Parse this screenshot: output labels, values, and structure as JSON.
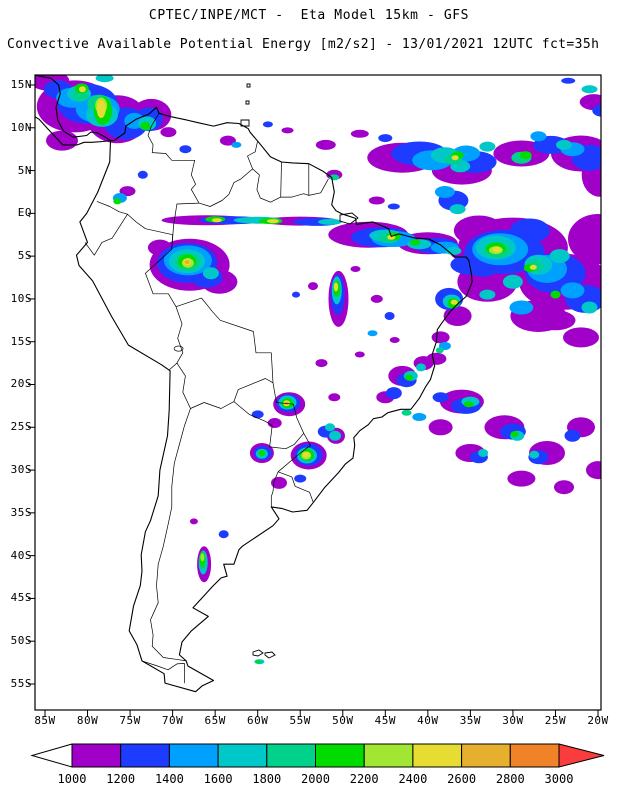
{
  "header": {
    "line1": "CPTEC/INPE/MCT -  Eta Model 15km - GFS",
    "line2": "Convective Available Potential Energy [m2/s2] - 13/01/2021 12UTC fct=35h"
  },
  "chart_data": {
    "type": "heatmap",
    "title": "Convective Available Potential Energy [m2/s2]",
    "model": "Eta Model 15km - GFS",
    "source": "CPTEC/INPE/MCT",
    "valid": "13/01/2021 12UTC fct=35h",
    "y_ticks": [
      "15N",
      "10N",
      "5N",
      "EQ",
      "5S",
      "10S",
      "15S",
      "20S",
      "25S",
      "30S",
      "35S",
      "40S",
      "45S",
      "50S",
      "55S"
    ],
    "x_ticks": [
      "85W",
      "80W",
      "75W",
      "70W",
      "65W",
      "60W",
      "55W",
      "50W",
      "45W",
      "40W",
      "35W",
      "30W",
      "25W",
      "20W"
    ],
    "colorbar": {
      "levels": [
        1000,
        1200,
        1400,
        1600,
        1800,
        2000,
        2200,
        2400,
        2600,
        2800,
        3000
      ],
      "cell_colors": [
        "#A000C8",
        "#1E3CFF",
        "#00A0FF",
        "#00C8C8",
        "#00D28C",
        "#00DC00",
        "#A0E632",
        "#E6DC32",
        "#E6AF2D",
        "#F08228"
      ],
      "underflow_color": "#FFFFFF",
      "overflow_color": "#FA3C3C"
    },
    "cape_cells": [
      [
        -81.5,
        12.5,
        38,
        26,
        1100
      ],
      [
        -76.5,
        11,
        30,
        24,
        1100
      ],
      [
        -72.5,
        11.5,
        20,
        16,
        1100
      ],
      [
        -83,
        8.5,
        16,
        10,
        1100
      ],
      [
        -84.5,
        15.5,
        20,
        10,
        1100
      ],
      [
        -80,
        12.8,
        30,
        20,
        1300
      ],
      [
        -75.5,
        10.5,
        22,
        16,
        1300
      ],
      [
        -72.8,
        11,
        14,
        12,
        1300
      ],
      [
        -83.5,
        14.5,
        14,
        9,
        1300
      ],
      [
        -78.8,
        12.2,
        22,
        14,
        1500
      ],
      [
        -81.8,
        13.5,
        16,
        10,
        1500
      ],
      [
        -74.5,
        10.8,
        10,
        8,
        1500
      ],
      [
        -78.3,
        11.5,
        16,
        12,
        1700
      ],
      [
        -81,
        14,
        12,
        8,
        1700
      ],
      [
        -73,
        10.5,
        9,
        7,
        1700
      ],
      [
        -78,
        15.8,
        9,
        4,
        1700
      ],
      [
        -78.6,
        12.8,
        12,
        9,
        1900
      ],
      [
        -80.8,
        13.8,
        8,
        6,
        1900
      ],
      [
        -78.2,
        12,
        9,
        14,
        2100
      ],
      [
        -80.7,
        14.6,
        7,
        5,
        2100
      ],
      [
        -73.2,
        10.2,
        5,
        4,
        2100
      ],
      [
        -78.4,
        12.6,
        6,
        8,
        2300
      ],
      [
        -78.4,
        12.2,
        4.5,
        9,
        2500
      ],
      [
        -80.6,
        14.5,
        3.5,
        3,
        2500
      ],
      [
        -70.5,
        9.5,
        8,
        5,
        1100
      ],
      [
        -68.5,
        7.5,
        6,
        4,
        1300
      ],
      [
        -76.2,
        1.8,
        7,
        5,
        1500
      ],
      [
        -76.5,
        1.4,
        4,
        3,
        2100
      ],
      [
        -75.3,
        2.6,
        8,
        5,
        1100
      ],
      [
        -73.5,
        4.5,
        5,
        4,
        1300
      ],
      [
        -63.5,
        8.5,
        8,
        5,
        1100
      ],
      [
        -62.5,
        8,
        5,
        3,
        1500
      ],
      [
        -48,
        9.3,
        9,
        4,
        1100
      ],
      [
        -52,
        8,
        10,
        5,
        1100
      ],
      [
        -56.5,
        9.7,
        6,
        3,
        1100
      ],
      [
        -58.8,
        10.4,
        5,
        3,
        1300
      ],
      [
        -45,
        8.8,
        7,
        4,
        1300
      ],
      [
        -43,
        6.5,
        35,
        15,
        1100
      ],
      [
        -36,
        5,
        30,
        14,
        1100
      ],
      [
        -29,
        7,
        28,
        13,
        1100
      ],
      [
        -22,
        7,
        30,
        18,
        1100
      ],
      [
        -19.8,
        4.5,
        18,
        22,
        1100
      ],
      [
        -41,
        7,
        28,
        12,
        1300
      ],
      [
        -34.5,
        6,
        22,
        11,
        1300
      ],
      [
        -25.5,
        8,
        18,
        9,
        1300
      ],
      [
        -21,
        6.5,
        18,
        13,
        1300
      ],
      [
        -39.5,
        6.2,
        20,
        10,
        1500
      ],
      [
        -35.5,
        7,
        14,
        8,
        1500
      ],
      [
        -23,
        7.5,
        12,
        7,
        1500
      ],
      [
        -27,
        9,
        8,
        5,
        1500
      ],
      [
        -38,
        6.8,
        14,
        8,
        1700
      ],
      [
        -36.2,
        5.5,
        10,
        6,
        1700
      ],
      [
        -33,
        7.8,
        8,
        5,
        1700
      ],
      [
        -24,
        8,
        8,
        5,
        1700
      ],
      [
        -37,
        6.3,
        9,
        5,
        1900
      ],
      [
        -29,
        6.5,
        10,
        6,
        1900
      ],
      [
        -36.5,
        6.8,
        6,
        4,
        2100
      ],
      [
        -28.5,
        6.8,
        6,
        4,
        2100
      ],
      [
        -36.8,
        6.5,
        3.5,
        2.5,
        2500
      ],
      [
        -20.5,
        13,
        14,
        8,
        1100
      ],
      [
        -19.5,
        12,
        10,
        6,
        1300
      ],
      [
        -21,
        14.5,
        8,
        4,
        1700
      ],
      [
        -23.5,
        15.5,
        7,
        3,
        1300
      ],
      [
        -37,
        1.5,
        15,
        10,
        1300
      ],
      [
        -38,
        2.5,
        10,
        6,
        1500
      ],
      [
        -36.5,
        0.5,
        8,
        5,
        1700
      ],
      [
        -46,
        1.5,
        8,
        4,
        1100
      ],
      [
        -44,
        0.8,
        6,
        3,
        1300
      ],
      [
        -51,
        4.5,
        8,
        5,
        1100
      ],
      [
        -51,
        4.2,
        5,
        3,
        1900
      ],
      [
        -47,
        -2.5,
        40,
        13,
        1100
      ],
      [
        -40,
        -3.5,
        30,
        11,
        1100
      ],
      [
        -35.5,
        -4.5,
        16,
        9,
        1100
      ],
      [
        -45.5,
        -2.8,
        30,
        10,
        1300
      ],
      [
        -39,
        -3.8,
        22,
        8,
        1300
      ],
      [
        -44,
        -3,
        22,
        8,
        1500
      ],
      [
        -38,
        -4,
        14,
        6,
        1500
      ],
      [
        -45,
        -2.6,
        16,
        6,
        1700
      ],
      [
        -41,
        -3.6,
        12,
        5,
        1700
      ],
      [
        -37,
        -4.4,
        8,
        4,
        1700
      ],
      [
        -44.6,
        -2.9,
        10,
        5,
        1900
      ],
      [
        -44,
        -2.7,
        7,
        4,
        2100
      ],
      [
        -41.5,
        -3.4,
        5,
        3,
        2100
      ],
      [
        -44.3,
        -2.8,
        4,
        2.5,
        2500
      ],
      [
        -66,
        -0.8,
        45,
        5,
        1100
      ],
      [
        -55,
        -0.9,
        38,
        4.5,
        1100
      ],
      [
        -63,
        -0.8,
        33,
        4,
        1300
      ],
      [
        -53,
        -1,
        24,
        4,
        1300
      ],
      [
        -60,
        -0.8,
        24,
        3.5,
        1700
      ],
      [
        -51.5,
        -1,
        12,
        3,
        1700
      ],
      [
        -58.5,
        -0.9,
        12,
        3,
        2100
      ],
      [
        -65,
        -0.7,
        10,
        3,
        2100
      ],
      [
        -58.2,
        -0.9,
        6,
        2,
        2500
      ],
      [
        -64.8,
        -0.8,
        5,
        2,
        2500
      ],
      [
        -68,
        -6,
        40,
        26,
        1100
      ],
      [
        -64.5,
        -8,
        18,
        12,
        1100
      ],
      [
        -71.5,
        -4,
        12,
        8,
        1100
      ],
      [
        -68.3,
        -5.8,
        30,
        20,
        1300
      ],
      [
        -66,
        -7.5,
        16,
        10,
        1300
      ],
      [
        -68.2,
        -5.5,
        24,
        15,
        1500
      ],
      [
        -68.3,
        -5.6,
        18,
        12,
        1700
      ],
      [
        -65.5,
        -7,
        8,
        6,
        1700
      ],
      [
        -68.2,
        -5.7,
        13,
        9,
        1900
      ],
      [
        -68.3,
        -5.6,
        9,
        7,
        2100
      ],
      [
        -68.2,
        -5.8,
        6,
        5,
        2300
      ],
      [
        -68.3,
        -5.7,
        4,
        3.5,
        2500
      ],
      [
        -68.3,
        -5.7,
        2.5,
        2,
        2700
      ],
      [
        -30,
        -4,
        55,
        30,
        1100
      ],
      [
        -24,
        -8,
        45,
        28,
        1100
      ],
      [
        -33,
        -8,
        30,
        20,
        1100
      ],
      [
        -20,
        -3,
        30,
        25,
        1100
      ],
      [
        -27,
        -12,
        28,
        16,
        1100
      ],
      [
        -34,
        -2,
        25,
        15,
        1100
      ],
      [
        -22,
        -14.5,
        18,
        10,
        1100
      ],
      [
        -25,
        -12.5,
        20,
        10,
        1100
      ],
      [
        -31,
        -4.5,
        40,
        22,
        1300
      ],
      [
        -25,
        -7,
        30,
        20,
        1300
      ],
      [
        -21.5,
        -10,
        20,
        14,
        1300
      ],
      [
        -33.5,
        -6,
        18,
        12,
        1300
      ],
      [
        -28,
        -2,
        20,
        12,
        1300
      ],
      [
        -35,
        -6,
        20,
        10,
        1300
      ],
      [
        -31.5,
        -4.2,
        28,
        16,
        1500
      ],
      [
        -26,
        -6.5,
        20,
        14,
        1500
      ],
      [
        -23,
        -9,
        12,
        8,
        1500
      ],
      [
        -29,
        -11,
        12,
        7,
        1500
      ],
      [
        -32,
        -4,
        20,
        12,
        1700
      ],
      [
        -27,
        -6,
        14,
        10,
        1700
      ],
      [
        -30,
        -8,
        10,
        7,
        1700
      ],
      [
        -24.5,
        -5,
        10,
        7,
        1700
      ],
      [
        -21,
        -11,
        8,
        6,
        1700
      ],
      [
        -33,
        -9.5,
        8,
        5,
        1700
      ],
      [
        -31.8,
        -4.3,
        14,
        8,
        1900
      ],
      [
        -27.5,
        -6.2,
        9,
        6,
        1900
      ],
      [
        -32,
        -4.1,
        10,
        6,
        2100
      ],
      [
        -28,
        -6.4,
        6,
        4,
        2100
      ],
      [
        -25,
        -9.5,
        5,
        4,
        2100
      ],
      [
        -32,
        -4.3,
        7,
        4,
        2300
      ],
      [
        -31.9,
        -4.2,
        4.5,
        3,
        2500
      ],
      [
        -27.6,
        -6.3,
        3.5,
        2.5,
        2500
      ],
      [
        -36.5,
        -12,
        14,
        10,
        1100
      ],
      [
        -37.5,
        -10,
        14,
        11,
        1300
      ],
      [
        -37.2,
        -10.3,
        9,
        7,
        1700
      ],
      [
        -37,
        -10.5,
        6,
        5,
        2100
      ],
      [
        -36.9,
        -10.4,
        3.5,
        2.5,
        2500
      ],
      [
        -38.5,
        -14.5,
        9,
        6,
        1100
      ],
      [
        -38,
        -15.5,
        6,
        4,
        1500
      ],
      [
        -39,
        -17,
        10,
        6,
        1100
      ],
      [
        -38.6,
        -16,
        4,
        3,
        1900
      ],
      [
        -50.5,
        -10,
        10,
        28,
        1100
      ],
      [
        -50.6,
        -9.5,
        7,
        20,
        1300
      ],
      [
        -50.7,
        -9,
        5,
        14,
        1700
      ],
      [
        -50.7,
        -8.8,
        3.5,
        8,
        2100
      ],
      [
        -50.8,
        -8.6,
        2.2,
        4.5,
        2500
      ],
      [
        -53.5,
        -8.5,
        5,
        4,
        1100
      ],
      [
        -55.5,
        -9.5,
        4,
        3,
        1300
      ],
      [
        -48.5,
        -6.5,
        5,
        3,
        1100
      ],
      [
        -46,
        -10,
        6,
        4,
        1100
      ],
      [
        -44.5,
        -12,
        5,
        4,
        1300
      ],
      [
        -46.5,
        -14,
        5,
        3,
        1500
      ],
      [
        -43.9,
        -14.8,
        5,
        3,
        1100
      ],
      [
        -48,
        -16.5,
        5,
        3,
        1100
      ],
      [
        -52.5,
        -17.5,
        6,
        4,
        1100
      ],
      [
        -43,
        -19,
        14,
        10,
        1100
      ],
      [
        -40.5,
        -17.5,
        10,
        7,
        1100
      ],
      [
        -45,
        -21.5,
        9,
        6,
        1100
      ],
      [
        -42.5,
        -19.5,
        10,
        7,
        1300
      ],
      [
        -44,
        -21,
        8,
        6,
        1300
      ],
      [
        -42,
        -19,
        7,
        5,
        1700
      ],
      [
        -40.8,
        -18,
        5,
        4,
        1700
      ],
      [
        -42.2,
        -19.2,
        4,
        3,
        2100
      ],
      [
        -56.3,
        -22.3,
        16,
        12,
        1100
      ],
      [
        -56.4,
        -22.2,
        12,
        9,
        1300
      ],
      [
        -56.5,
        -22.1,
        9,
        7,
        1700
      ],
      [
        -56.5,
        -22.2,
        6,
        5,
        2100
      ],
      [
        -56.6,
        -22.2,
        3.5,
        3,
        2500
      ],
      [
        -56.6,
        -22.2,
        2,
        1.5,
        2700
      ],
      [
        -54,
        -28.3,
        18,
        14,
        1100
      ],
      [
        -54,
        -28.2,
        14,
        11,
        1300
      ],
      [
        -54.2,
        -28.3,
        10,
        8,
        1700
      ],
      [
        -54.2,
        -28.2,
        7,
        6,
        2100
      ],
      [
        -54.3,
        -28.3,
        5,
        4,
        2300
      ],
      [
        -54.3,
        -28.2,
        3.5,
        3,
        2500
      ],
      [
        -59.5,
        -28,
        12,
        10,
        1100
      ],
      [
        -59.4,
        -28,
        9,
        7,
        1300
      ],
      [
        -59.5,
        -28.1,
        6,
        5,
        1700
      ],
      [
        -59.5,
        -28,
        3.5,
        3,
        2100
      ],
      [
        -52,
        -25.5,
        8,
        6,
        1300
      ],
      [
        -51.5,
        -25,
        5,
        4,
        1700
      ],
      [
        -58,
        -24.5,
        7,
        5,
        1100
      ],
      [
        -60,
        -23.5,
        6,
        4,
        1300
      ],
      [
        -51,
        -21.5,
        6,
        4,
        1100
      ],
      [
        -50.8,
        -26,
        9,
        8,
        1100
      ],
      [
        -50.9,
        -26,
        6,
        5,
        1700
      ],
      [
        -57.5,
        -31.5,
        8,
        6,
        1100
      ],
      [
        -55,
        -31,
        6,
        4,
        1300
      ],
      [
        -36,
        -22,
        22,
        12,
        1100
      ],
      [
        -31,
        -25,
        20,
        12,
        1100
      ],
      [
        -26,
        -28,
        18,
        12,
        1100
      ],
      [
        -35,
        -28,
        15,
        9,
        1100
      ],
      [
        -29,
        -31,
        14,
        8,
        1100
      ],
      [
        -38.5,
        -25,
        12,
        8,
        1100
      ],
      [
        -22,
        -25,
        14,
        10,
        1100
      ],
      [
        -20,
        -30,
        12,
        9,
        1100
      ],
      [
        -24,
        -32,
        10,
        7,
        1100
      ],
      [
        -35.5,
        -22.5,
        15,
        8,
        1300
      ],
      [
        -30,
        -25.5,
        13,
        8,
        1300
      ],
      [
        -27,
        -28.5,
        10,
        7,
        1300
      ],
      [
        -34,
        -28.5,
        9,
        6,
        1300
      ],
      [
        -23,
        -26,
        8,
        6,
        1300
      ],
      [
        -35,
        -22,
        9,
        5,
        1700
      ],
      [
        -29.5,
        -26,
        7,
        5,
        1700
      ],
      [
        -33.5,
        -28,
        5,
        4,
        1700
      ],
      [
        -27.5,
        -28.2,
        5,
        4,
        1700
      ],
      [
        -35.2,
        -22.3,
        5,
        3,
        2100
      ],
      [
        -29.8,
        -25.8,
        4,
        3,
        2100
      ],
      [
        -38.5,
        -21.5,
        8,
        5,
        1300
      ],
      [
        -41,
        -23.8,
        7,
        4,
        1500
      ],
      [
        -42.5,
        -23.3,
        5,
        3,
        1900
      ],
      [
        -66.3,
        -41,
        7,
        18,
        1100
      ],
      [
        -66.4,
        -40.8,
        4.5,
        12,
        1700
      ],
      [
        -66.5,
        -40.5,
        3,
        8,
        2100
      ],
      [
        -66.5,
        -40.2,
        2,
        4,
        2300
      ],
      [
        -64,
        -37.5,
        5,
        4,
        1300
      ],
      [
        -67.5,
        -36,
        4,
        3,
        1100
      ],
      [
        -59.8,
        -52.4,
        5,
        2.5,
        1700
      ],
      [
        -59.9,
        -52.4,
        2.5,
        1.5,
        2100
      ]
    ]
  }
}
